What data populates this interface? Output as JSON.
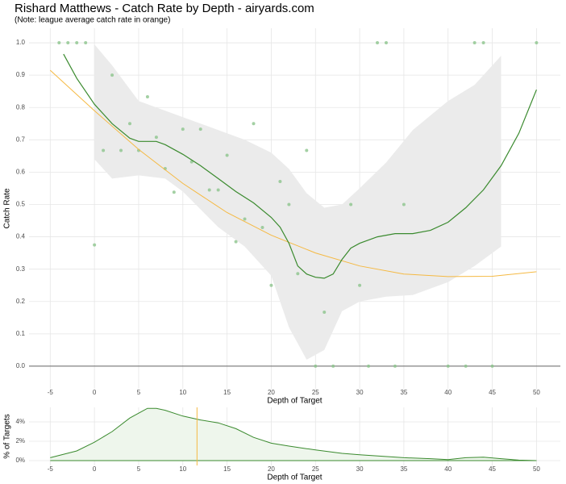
{
  "chart_data": [
    {
      "type": "scatter",
      "title": "Rishard Matthews - Catch Rate by Depth - airyards.com",
      "subtitle": "(Note: league average catch rate in orange)",
      "x_label": "Depth of Target",
      "y_label": "Catch Rate",
      "xlim": [
        -7.4,
        52.7
      ],
      "ylim": [
        -0.07,
        1.045
      ],
      "xticks": [
        -5,
        0,
        5,
        10,
        15,
        20,
        25,
        30,
        35,
        40,
        45,
        50
      ],
      "yticks": [
        {
          "value": 0,
          "label": "0.0"
        },
        0.1,
        0.2,
        0.3,
        0.4,
        0.5,
        0.6,
        0.7,
        0.8,
        0.9,
        {
          "value": 1,
          "label": "1.0"
        }
      ],
      "grid": true,
      "hline": 0,
      "band": {
        "color": "#ebebeb",
        "x": [
          0,
          2,
          5,
          8,
          10,
          14,
          17,
          20,
          22,
          24,
          26,
          28,
          30,
          33,
          36,
          40,
          43,
          46
        ],
        "upper": [
          0.995,
          0.93,
          0.82,
          0.79,
          0.77,
          0.73,
          0.7,
          0.66,
          0.61,
          0.535,
          0.49,
          0.5,
          0.55,
          0.63,
          0.73,
          0.82,
          0.87,
          0.96
        ],
        "lower": [
          0.64,
          0.58,
          0.59,
          0.58,
          0.54,
          0.43,
          0.37,
          0.28,
          0.12,
          0.02,
          0.05,
          0.17,
          0.2,
          0.215,
          0.22,
          0.26,
          0.31,
          0.37
        ]
      },
      "points": {
        "color": "#8cc48c",
        "x": [
          -4,
          -3,
          -2,
          -1,
          0,
          1,
          2,
          3,
          4,
          5,
          6,
          7,
          8,
          9,
          10,
          11,
          12,
          13,
          14,
          15,
          16,
          17,
          18,
          19,
          20,
          21,
          22,
          23,
          24,
          25,
          26,
          27,
          29,
          30,
          31,
          32,
          33,
          34,
          35,
          40,
          42,
          43,
          44,
          45,
          50
        ],
        "y": [
          1,
          1,
          1,
          1,
          0.375,
          0.667,
          0.9,
          0.667,
          0.75,
          0.667,
          0.833,
          0.708,
          0.611,
          0.538,
          0.733,
          0.632,
          0.733,
          0.545,
          0.545,
          0.652,
          0.385,
          0.455,
          0.75,
          0.429,
          0.25,
          0.571,
          0.5,
          0.286,
          0.667,
          0,
          0.167,
          0,
          0.5,
          0.25,
          0,
          1,
          1,
          0,
          0.5,
          0,
          0,
          1,
          1,
          0,
          1
        ]
      },
      "smooth": {
        "color": "#3a8a2e",
        "x": [
          -3.5,
          -2,
          0,
          2,
          4,
          5,
          7,
          8,
          10,
          12,
          14,
          16,
          18,
          20,
          21,
          22,
          23,
          24,
          25,
          26,
          27,
          28,
          29,
          30,
          32,
          34,
          36,
          38,
          40,
          42,
          44,
          46,
          48,
          50
        ],
        "y": [
          0.965,
          0.89,
          0.81,
          0.75,
          0.705,
          0.695,
          0.695,
          0.685,
          0.655,
          0.62,
          0.58,
          0.54,
          0.505,
          0.46,
          0.43,
          0.38,
          0.31,
          0.285,
          0.275,
          0.272,
          0.285,
          0.33,
          0.365,
          0.38,
          0.4,
          0.41,
          0.41,
          0.42,
          0.445,
          0.49,
          0.545,
          0.62,
          0.72,
          0.855
        ]
      },
      "league_average": {
        "color": "#f5b942",
        "x": [
          -5,
          0,
          5,
          10,
          15,
          20,
          25,
          30,
          35,
          40,
          45,
          50
        ],
        "y": [
          0.915,
          0.79,
          0.67,
          0.565,
          0.475,
          0.405,
          0.35,
          0.31,
          0.285,
          0.277,
          0.278,
          0.292
        ]
      }
    },
    {
      "type": "area",
      "x_label": "Depth of Target",
      "y_label": "% of Targets",
      "xlim": [
        -7.4,
        52.7
      ],
      "ylim": [
        -0.5,
        5.5
      ],
      "xticks": [
        -5,
        0,
        5,
        10,
        15,
        20,
        25,
        30,
        35,
        40,
        45,
        50
      ],
      "yticks": [
        {
          "value": 0,
          "label": "0%"
        },
        {
          "value": 2,
          "label": "2%"
        },
        {
          "value": 4,
          "label": "4%"
        }
      ],
      "grid": true,
      "color": "#3a8a2e",
      "fill": "#eef6ec",
      "x": [
        -5,
        -2,
        0,
        2,
        4,
        6,
        7,
        8,
        10,
        12,
        14,
        16,
        18,
        20,
        22,
        25,
        28,
        30,
        35,
        38,
        40,
        42,
        44,
        46,
        48,
        50
      ],
      "values": [
        0.3,
        1.0,
        1.9,
        3.0,
        4.4,
        5.4,
        5.4,
        5.2,
        4.6,
        4.2,
        3.9,
        3.3,
        2.4,
        1.8,
        1.5,
        1.1,
        0.75,
        0.6,
        0.3,
        0.2,
        0.1,
        0.3,
        0.35,
        0.2,
        0.05,
        0
      ],
      "vline": 11.6,
      "vline_color": "#f5b942"
    }
  ]
}
